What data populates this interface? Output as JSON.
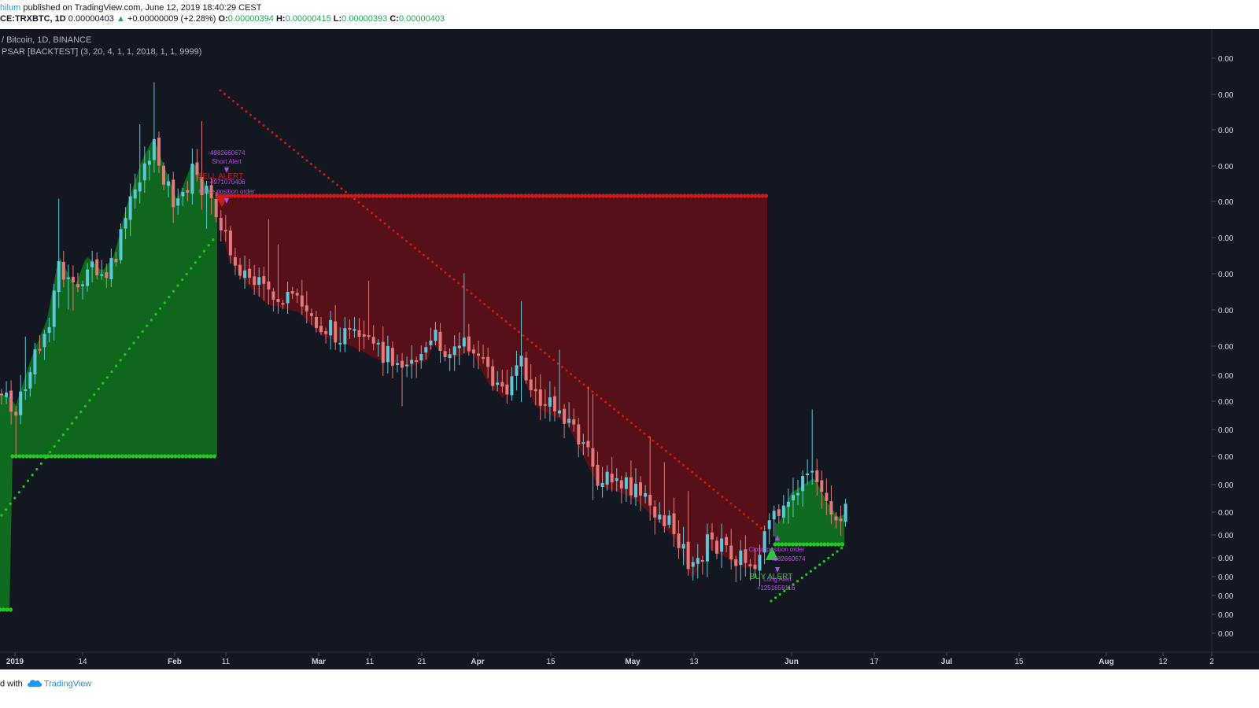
{
  "header": {
    "author": "hilum",
    "published_text": " published on TradingView.com, June 12, 2019 18:40:29 CEST",
    "symbol": "CE:TRXBTC, 1D",
    "last_price": "0.00000403",
    "up_arrow": "▲",
    "change": "+0.00000009 (+2.28%)",
    "open_label": "O:",
    "open_value": "0.00000394",
    "high_label": "H:",
    "high_value": "0.00000415",
    "low_label": "L:",
    "low_value": "0.00000393",
    "close_label": "C:",
    "close_value": "0.00000403"
  },
  "legend": {
    "pair": "/ Bitcoin, 1D, BINANCE",
    "indicator": "PSAR [BACKTEST] (3, 20, 4, 1, 1, 2018, 1, 1, 9999)"
  },
  "footer": {
    "made_with": "d with",
    "brand": "TradingView",
    "logo_icon": "tradingview-cloud-icon"
  },
  "colors": {
    "background": "#131722",
    "up_candle": "#5dc8dc",
    "down_candle": "#e17b7b",
    "long_fill": "#0f6b1e",
    "short_fill": "#5c1018",
    "long_dots": "#22c922",
    "short_dots": "#d11a1a",
    "alert_text": "#b84de0",
    "buy_text": "#22d12e",
    "sell_text": "#d11a1a",
    "axis_text": "#d1d4dc"
  },
  "chart_data": {
    "type": "candlestick",
    "title": "TRXBTC, 1D, BINANCE",
    "x_axis_labels": [
      "2019",
      "14",
      "Feb",
      "11",
      "Mar",
      "11",
      "21",
      "Apr",
      "15",
      "May",
      "13",
      "Jun",
      "17",
      "Jul",
      "15",
      "Aug",
      "12",
      "2"
    ],
    "y_axis_labels": [
      "0.00",
      "0.00",
      "0.00",
      "0.00",
      "0.00",
      "0.00",
      "0.00",
      "0.00",
      "0.00",
      "0.00",
      "0.00",
      "0.00",
      "0.00",
      "0.00",
      "0.00",
      "0.00",
      "0.00",
      "0.00",
      "0.00",
      "0.00",
      "0.00"
    ],
    "last_candle": {
      "open": 3.94e-06,
      "high": 4.15e-06,
      "low": 3.93e-06,
      "close": 4.03e-06,
      "change": 9e-08,
      "change_pct": 2.28
    },
    "annotations": {
      "short_alert_pnl": "-4982660674",
      "short_alert": "Short Alert",
      "sell_alert": "SELL ALERT",
      "short_pnl_2": "-4971070406",
      "close_position_top": "Close position order",
      "close_position_bottom": "Close position order",
      "bottom_pnl": "-4982660674",
      "buy_alert": "BUY ALERT",
      "long_alert": "Long Alert",
      "long_pnl": "+1251659116"
    }
  }
}
